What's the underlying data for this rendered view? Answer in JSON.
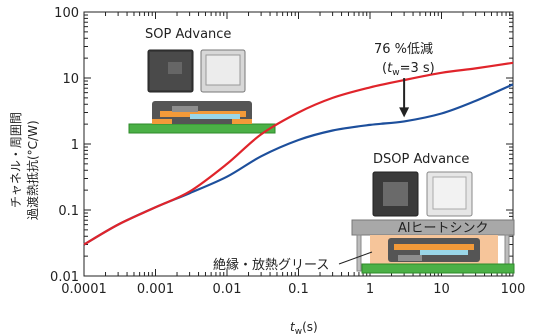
{
  "chart_data": {
    "type": "line",
    "title": "",
    "xlabel": "t_w(s)",
    "xlabel_main": "t",
    "xlabel_sub": "w",
    "xlabel_unit": "(s)",
    "ylabel_line1": "チャネル・周囲間",
    "ylabel_line2": "過渡熱抵抗(°C/W)",
    "xscale": "log",
    "yscale": "log",
    "xlim": [
      0.0001,
      100
    ],
    "ylim": [
      0.01,
      100
    ],
    "xticks": [
      "0.0001",
      "0.001",
      "0.01",
      "0.1",
      "1",
      "10",
      "100"
    ],
    "yticks": [
      "0.01",
      "0.1",
      "1",
      "10",
      "100"
    ],
    "series": [
      {
        "name": "SOP Advance",
        "color": "#e0242b",
        "x": [
          0.0001,
          0.0003,
          0.001,
          0.003,
          0.01,
          0.03,
          0.1,
          0.3,
          1,
          3,
          10,
          30,
          100
        ],
        "y": [
          0.03,
          0.06,
          0.11,
          0.19,
          0.5,
          1.4,
          3.0,
          5.0,
          7.2,
          9.3,
          12.0,
          14.0,
          17.0
        ]
      },
      {
        "name": "DSOP Advance",
        "color": "#1d4f9c",
        "x": [
          0.0001,
          0.0003,
          0.001,
          0.003,
          0.01,
          0.03,
          0.1,
          0.3,
          1,
          3,
          10,
          30,
          100
        ],
        "y": [
          0.03,
          0.06,
          0.11,
          0.18,
          0.32,
          0.65,
          1.15,
          1.6,
          1.95,
          2.2,
          2.9,
          4.5,
          8.0
        ]
      }
    ],
    "annotations": {
      "reduction_line1": "76 %低減",
      "reduction_t": "t",
      "reduction_sub": "w",
      "reduction_rest": "=3 s)",
      "reduction_open": "(",
      "reduction_at_x": 3,
      "sop_label": "SOP Advance",
      "dsop_label": "DSOP Advance",
      "heatsink_label": "Alヒートシンク",
      "grease_label": "絶縁・放熱グリース"
    },
    "grid": false
  }
}
